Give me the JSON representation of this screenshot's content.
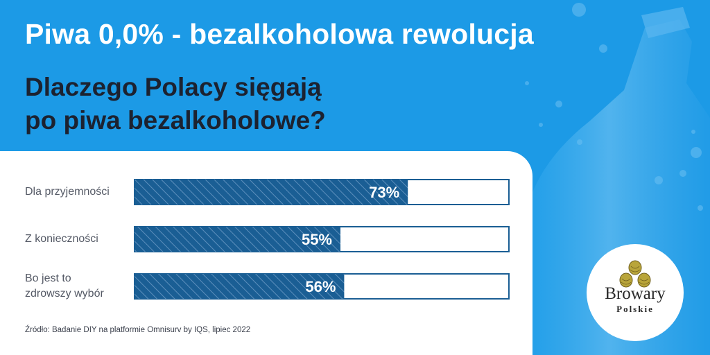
{
  "header": {
    "title": "Piwa 0,0% - bezalkoholowa rewolucja",
    "subtitle_line1": "Dlaczego Polacy sięgają",
    "subtitle_line2": "po piwa bezalkoholowe?"
  },
  "chart_data": {
    "type": "bar",
    "orientation": "horizontal",
    "categories": [
      "Dla przyjemności",
      "Z konieczności",
      "Bo jest to zdrowszy wybór"
    ],
    "category_lines": [
      [
        "Dla przyjemności"
      ],
      [
        "Z konieczności"
      ],
      [
        "Bo jest to",
        "zdrowszy wybór"
      ]
    ],
    "values": [
      73,
      55,
      56
    ],
    "value_labels": [
      "73%",
      "55%",
      "56%"
    ],
    "xlim": [
      0,
      100
    ],
    "unit": "%",
    "grid": false,
    "legend": "none"
  },
  "source": "Źródło: Badanie DIY na platformie Omnisurv by IQS, lipiec 2022",
  "logo": {
    "line1": "Browary",
    "line2": "Polskie",
    "icon": "hop-cones-icon"
  },
  "colors": {
    "background": "#1c9ae6",
    "bar_fill": "#1a5e94",
    "bar_stripe": "#5d8fbc",
    "bar_border": "#1a5e94",
    "title_text": "#ffffff",
    "subtitle_text": "#1c2230",
    "hop_green": "#b9a53a"
  }
}
